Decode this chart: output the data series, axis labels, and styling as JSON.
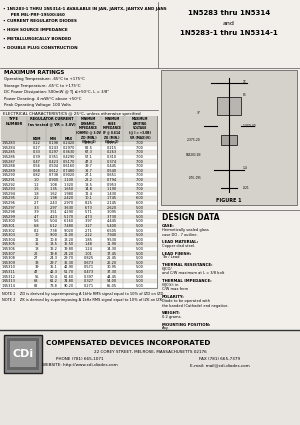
{
  "title_right_line1": "1N5283 thru 1N5314",
  "title_right_line2": "and",
  "title_right_line3": "1N5283-1 thru 1N5314-1",
  "bullets": [
    "• 1N5283-1 THRU 1N5314-1 AVAILABLE IN JAN, JANTX, JANTXV AND JANS",
    "  PER MIL-PRF-19500/460",
    "• CURRENT REGULATOR DIODES",
    "• HIGH SOURCE IMPEDANCE",
    "• METALLURGICALLY BONDED",
    "• DOUBLE PLUG CONSTRUCTION"
  ],
  "max_ratings_title": "MAXIMUM RATINGS",
  "max_ratings": [
    "Operating Temperature: -65°C to +175°C",
    "Storage Temperature: -65°C to +175°C",
    "DC Power Dissipation: 500mW @ TJ ≤+50°C, L = 3/8\"",
    "Power Derating: 4 mW/°C above +50°C",
    "Peak Operating Voltage: 100 Volts"
  ],
  "elec_char_title": "ELECTRICAL CHARACTERISTICS @ 25°C, unless otherwise specified",
  "table_data": [
    [
      "1N5283",
      "0.22",
      "0.198",
      "0.2420",
      "100.0",
      "0.175",
      "7.00"
    ],
    [
      "1N5284",
      "0.27",
      "0.243",
      "0.2970",
      "82.5",
      "0.215",
      "7.00"
    ],
    [
      "1N5285",
      "0.33",
      "0.297",
      "0.3630",
      "67.3",
      "0.263",
      "7.00"
    ],
    [
      "1N5286",
      "0.39",
      "0.351",
      "0.4290",
      "57.1",
      "0.310",
      "7.00"
    ],
    [
      "1N5287",
      "0.47",
      "0.423",
      "0.5170",
      "47.3",
      "0.374",
      "7.00"
    ],
    [
      "1N5288",
      "0.56",
      "0.504",
      "0.6160",
      "39.7",
      "0.445",
      "7.00"
    ],
    [
      "1N5289",
      "0.68",
      "0.612",
      "0.7480",
      "32.7",
      "0.540",
      "7.00"
    ],
    [
      "1N5290",
      "0.82",
      "0.738",
      "0.9020",
      "27.1",
      "0.651",
      "7.00"
    ],
    [
      "1N5291",
      "1.0",
      "0.900",
      "1.100",
      "22.2",
      "0.794",
      "7.00"
    ],
    [
      "1N5292",
      "1.2",
      "1.08",
      "1.320",
      "18.5",
      "0.953",
      "7.00"
    ],
    [
      "1N5293",
      "1.5",
      "1.35",
      "1.650",
      "14.8",
      "1.190",
      "7.00"
    ],
    [
      "1N5294",
      "1.8",
      "1.62",
      "1.980",
      "12.4",
      "1.430",
      "7.00"
    ],
    [
      "1N5295",
      "2.2",
      "1.98",
      "2.420",
      "10.1",
      "1.745",
      "6.00"
    ],
    [
      "1N5296",
      "2.7",
      "2.43",
      "2.970",
      "8.25",
      "2.145",
      "6.00"
    ],
    [
      "1N5297",
      "3.3",
      "2.97",
      "3.630",
      "6.73",
      "2.620",
      "5.00"
    ],
    [
      "1N5298",
      "3.9",
      "3.51",
      "4.290",
      "5.71",
      "3.095",
      "5.00"
    ],
    [
      "1N5299",
      "4.7",
      "4.23",
      "5.170",
      "4.73",
      "3.730",
      "5.00"
    ],
    [
      "1N5300",
      "5.6",
      "5.04",
      "6.160",
      "3.97",
      "4.445",
      "5.00"
    ],
    [
      "1N5301",
      "6.8",
      "6.12",
      "7.480",
      "3.27",
      "5.400",
      "5.00"
    ],
    [
      "1N5302",
      "8.2",
      "7.38",
      "9.020",
      "2.71",
      "6.505",
      "5.00"
    ],
    [
      "1N5303",
      "10",
      "9.00",
      "11.00",
      "2.22",
      "7.940",
      "5.00"
    ],
    [
      "1N5304",
      "12",
      "10.8",
      "13.20",
      "1.85",
      "9.530",
      "5.00"
    ],
    [
      "1N5305",
      "15",
      "13.5",
      "16.50",
      "1.48",
      "11.90",
      "5.00"
    ],
    [
      "1N5306",
      "18",
      "16.2",
      "19.80",
      "1.24",
      "14.30",
      "5.00"
    ],
    [
      "1N5307",
      "22",
      "19.8",
      "24.20",
      "1.01",
      "17.45",
      "5.00"
    ],
    [
      "1N5308",
      "27",
      "24.3",
      "29.70",
      "0.825",
      "21.45",
      "5.00"
    ],
    [
      "1N5309",
      "33",
      "29.7",
      "36.30",
      "0.673",
      "26.20",
      "5.00"
    ],
    [
      "1N5310",
      "39",
      "35.1",
      "42.90",
      "0.571",
      "30.95",
      "5.00"
    ],
    [
      "1N5311",
      "47",
      "42.3",
      "51.70",
      "0.473",
      "37.30",
      "5.00"
    ],
    [
      "1N5312",
      "56",
      "50.4",
      "61.60",
      "0.397",
      "44.45",
      "5.00"
    ],
    [
      "1N5313",
      "68",
      "61.2",
      "74.80",
      "0.327",
      "54.00",
      "5.00"
    ],
    [
      "1N5314",
      "82",
      "73.8",
      "90.20",
      "0.271",
      "65.05",
      "5.00"
    ]
  ],
  "note1": "NOTE 1    ZD is derived by superimposing A 1kHz RMS signal equal to 10% of IZD on IZD",
  "note2": "NOTE 2    ZK is derived by superimposing A 1kHz RMS signal equal to 10% of IZK on IZK",
  "figure_label": "FIGURE 1",
  "design_data_title": "DESIGN DATA",
  "design_items": [
    [
      "CASE:",
      "Hermetically sealed glass\ncase DO - 7 outline."
    ],
    [
      "LEAD MATERIAL:",
      "Copper clad steel."
    ],
    [
      "LEAD FINISH:",
      "Tin / Lead"
    ],
    [
      "THERMAL RESISTANCE:",
      "ΘJCO/\nand C/W maximum at L = 3/8 bolt"
    ],
    [
      "THERMAL IMPEDANCE:",
      "ΘJC(t): in\nC/W max from"
    ],
    [
      "POLARITY:",
      "Diode to be operated with\nthe banded (Cathode) end negative."
    ],
    [
      "WEIGHT:",
      "0.2 grams."
    ],
    [
      "MOUNTING POSITION:",
      "Any."
    ]
  ],
  "company_name": "COMPENSATED DEVICES INCORPORATED",
  "address": "22 COREY STREET, MELROSE, MASSACHUSETTS 02176",
  "phone": "PHONE (781) 665-1071",
  "fax": "FAX (781) 665-7379",
  "website": "WEBSITE: http://www.cdi-diodes.com",
  "email": "E-mail: mail@cdi-diodes.com",
  "bg_color": "#f2efea",
  "footer_bg": "#e8e5e0"
}
